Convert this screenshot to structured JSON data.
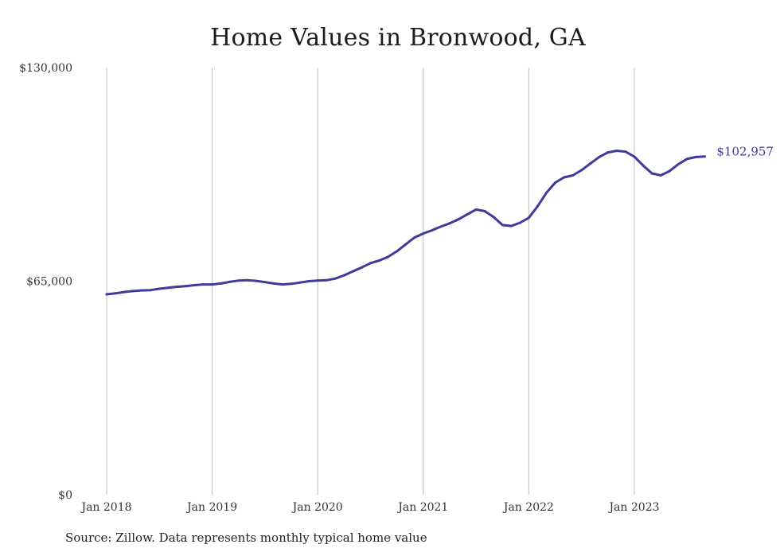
{
  "chart_data": {
    "type": "line",
    "title": "Home Values in Bronwood, GA",
    "xlabel": "",
    "ylabel": "",
    "ylim": [
      0,
      130000
    ],
    "y_ticks": [
      "$0",
      "$65,000",
      "$130,000"
    ],
    "y_tick_values": [
      0,
      65000,
      130000
    ],
    "x_ticks": [
      "Jan 2018",
      "Jan 2019",
      "Jan 2020",
      "Jan 2021",
      "Jan 2022",
      "Jan 2023"
    ],
    "x_tick_values": [
      "2018-01",
      "2019-01",
      "2020-01",
      "2021-01",
      "2022-01",
      "2023-01"
    ],
    "grid": "vertical",
    "series": [
      {
        "color": "#3f3a9b",
        "end_label": "$102,957",
        "points": [
          [
            "2018-01",
            61000
          ],
          [
            "2018-02",
            61300
          ],
          [
            "2018-03",
            61700
          ],
          [
            "2018-04",
            62000
          ],
          [
            "2018-05",
            62200
          ],
          [
            "2018-06",
            62300
          ],
          [
            "2018-07",
            62700
          ],
          [
            "2018-08",
            63000
          ],
          [
            "2018-09",
            63300
          ],
          [
            "2018-10",
            63500
          ],
          [
            "2018-11",
            63800
          ],
          [
            "2018-12",
            64000
          ],
          [
            "2019-01",
            64000
          ],
          [
            "2019-02",
            64300
          ],
          [
            "2019-03",
            64800
          ],
          [
            "2019-04",
            65200
          ],
          [
            "2019-05",
            65300
          ],
          [
            "2019-06",
            65100
          ],
          [
            "2019-07",
            64700
          ],
          [
            "2019-08",
            64300
          ],
          [
            "2019-09",
            64000
          ],
          [
            "2019-10",
            64200
          ],
          [
            "2019-11",
            64600
          ],
          [
            "2019-12",
            65000
          ],
          [
            "2020-01",
            65200
          ],
          [
            "2020-02",
            65300
          ],
          [
            "2020-03",
            65800
          ],
          [
            "2020-04",
            66800
          ],
          [
            "2020-05",
            68000
          ],
          [
            "2020-06",
            69200
          ],
          [
            "2020-07",
            70500
          ],
          [
            "2020-08",
            71300
          ],
          [
            "2020-09",
            72400
          ],
          [
            "2020-10",
            74100
          ],
          [
            "2020-11",
            76200
          ],
          [
            "2020-12",
            78300
          ],
          [
            "2021-01",
            79500
          ],
          [
            "2021-02",
            80500
          ],
          [
            "2021-03",
            81600
          ],
          [
            "2021-04",
            82600
          ],
          [
            "2021-05",
            83800
          ],
          [
            "2021-06",
            85300
          ],
          [
            "2021-07",
            86800
          ],
          [
            "2021-08",
            86300
          ],
          [
            "2021-09",
            84500
          ],
          [
            "2021-10",
            82100
          ],
          [
            "2021-11",
            81800
          ],
          [
            "2021-12",
            82800
          ],
          [
            "2022-01",
            84300
          ],
          [
            "2022-02",
            87800
          ],
          [
            "2022-03",
            91900
          ],
          [
            "2022-04",
            95000
          ],
          [
            "2022-05",
            96600
          ],
          [
            "2022-06",
            97200
          ],
          [
            "2022-07",
            98800
          ],
          [
            "2022-08",
            100800
          ],
          [
            "2022-09",
            102800
          ],
          [
            "2022-10",
            104200
          ],
          [
            "2022-11",
            104700
          ],
          [
            "2022-12",
            104400
          ],
          [
            "2023-01",
            102900
          ],
          [
            "2023-02",
            100200
          ],
          [
            "2023-03",
            97800
          ],
          [
            "2023-04",
            97200
          ],
          [
            "2023-05",
            98500
          ],
          [
            "2023-06",
            100600
          ],
          [
            "2023-07",
            102200
          ],
          [
            "2023-08",
            102800
          ],
          [
            "2023-09",
            102957
          ]
        ]
      }
    ]
  },
  "source_note": "Source: Zillow. Data represents monthly typical home value"
}
